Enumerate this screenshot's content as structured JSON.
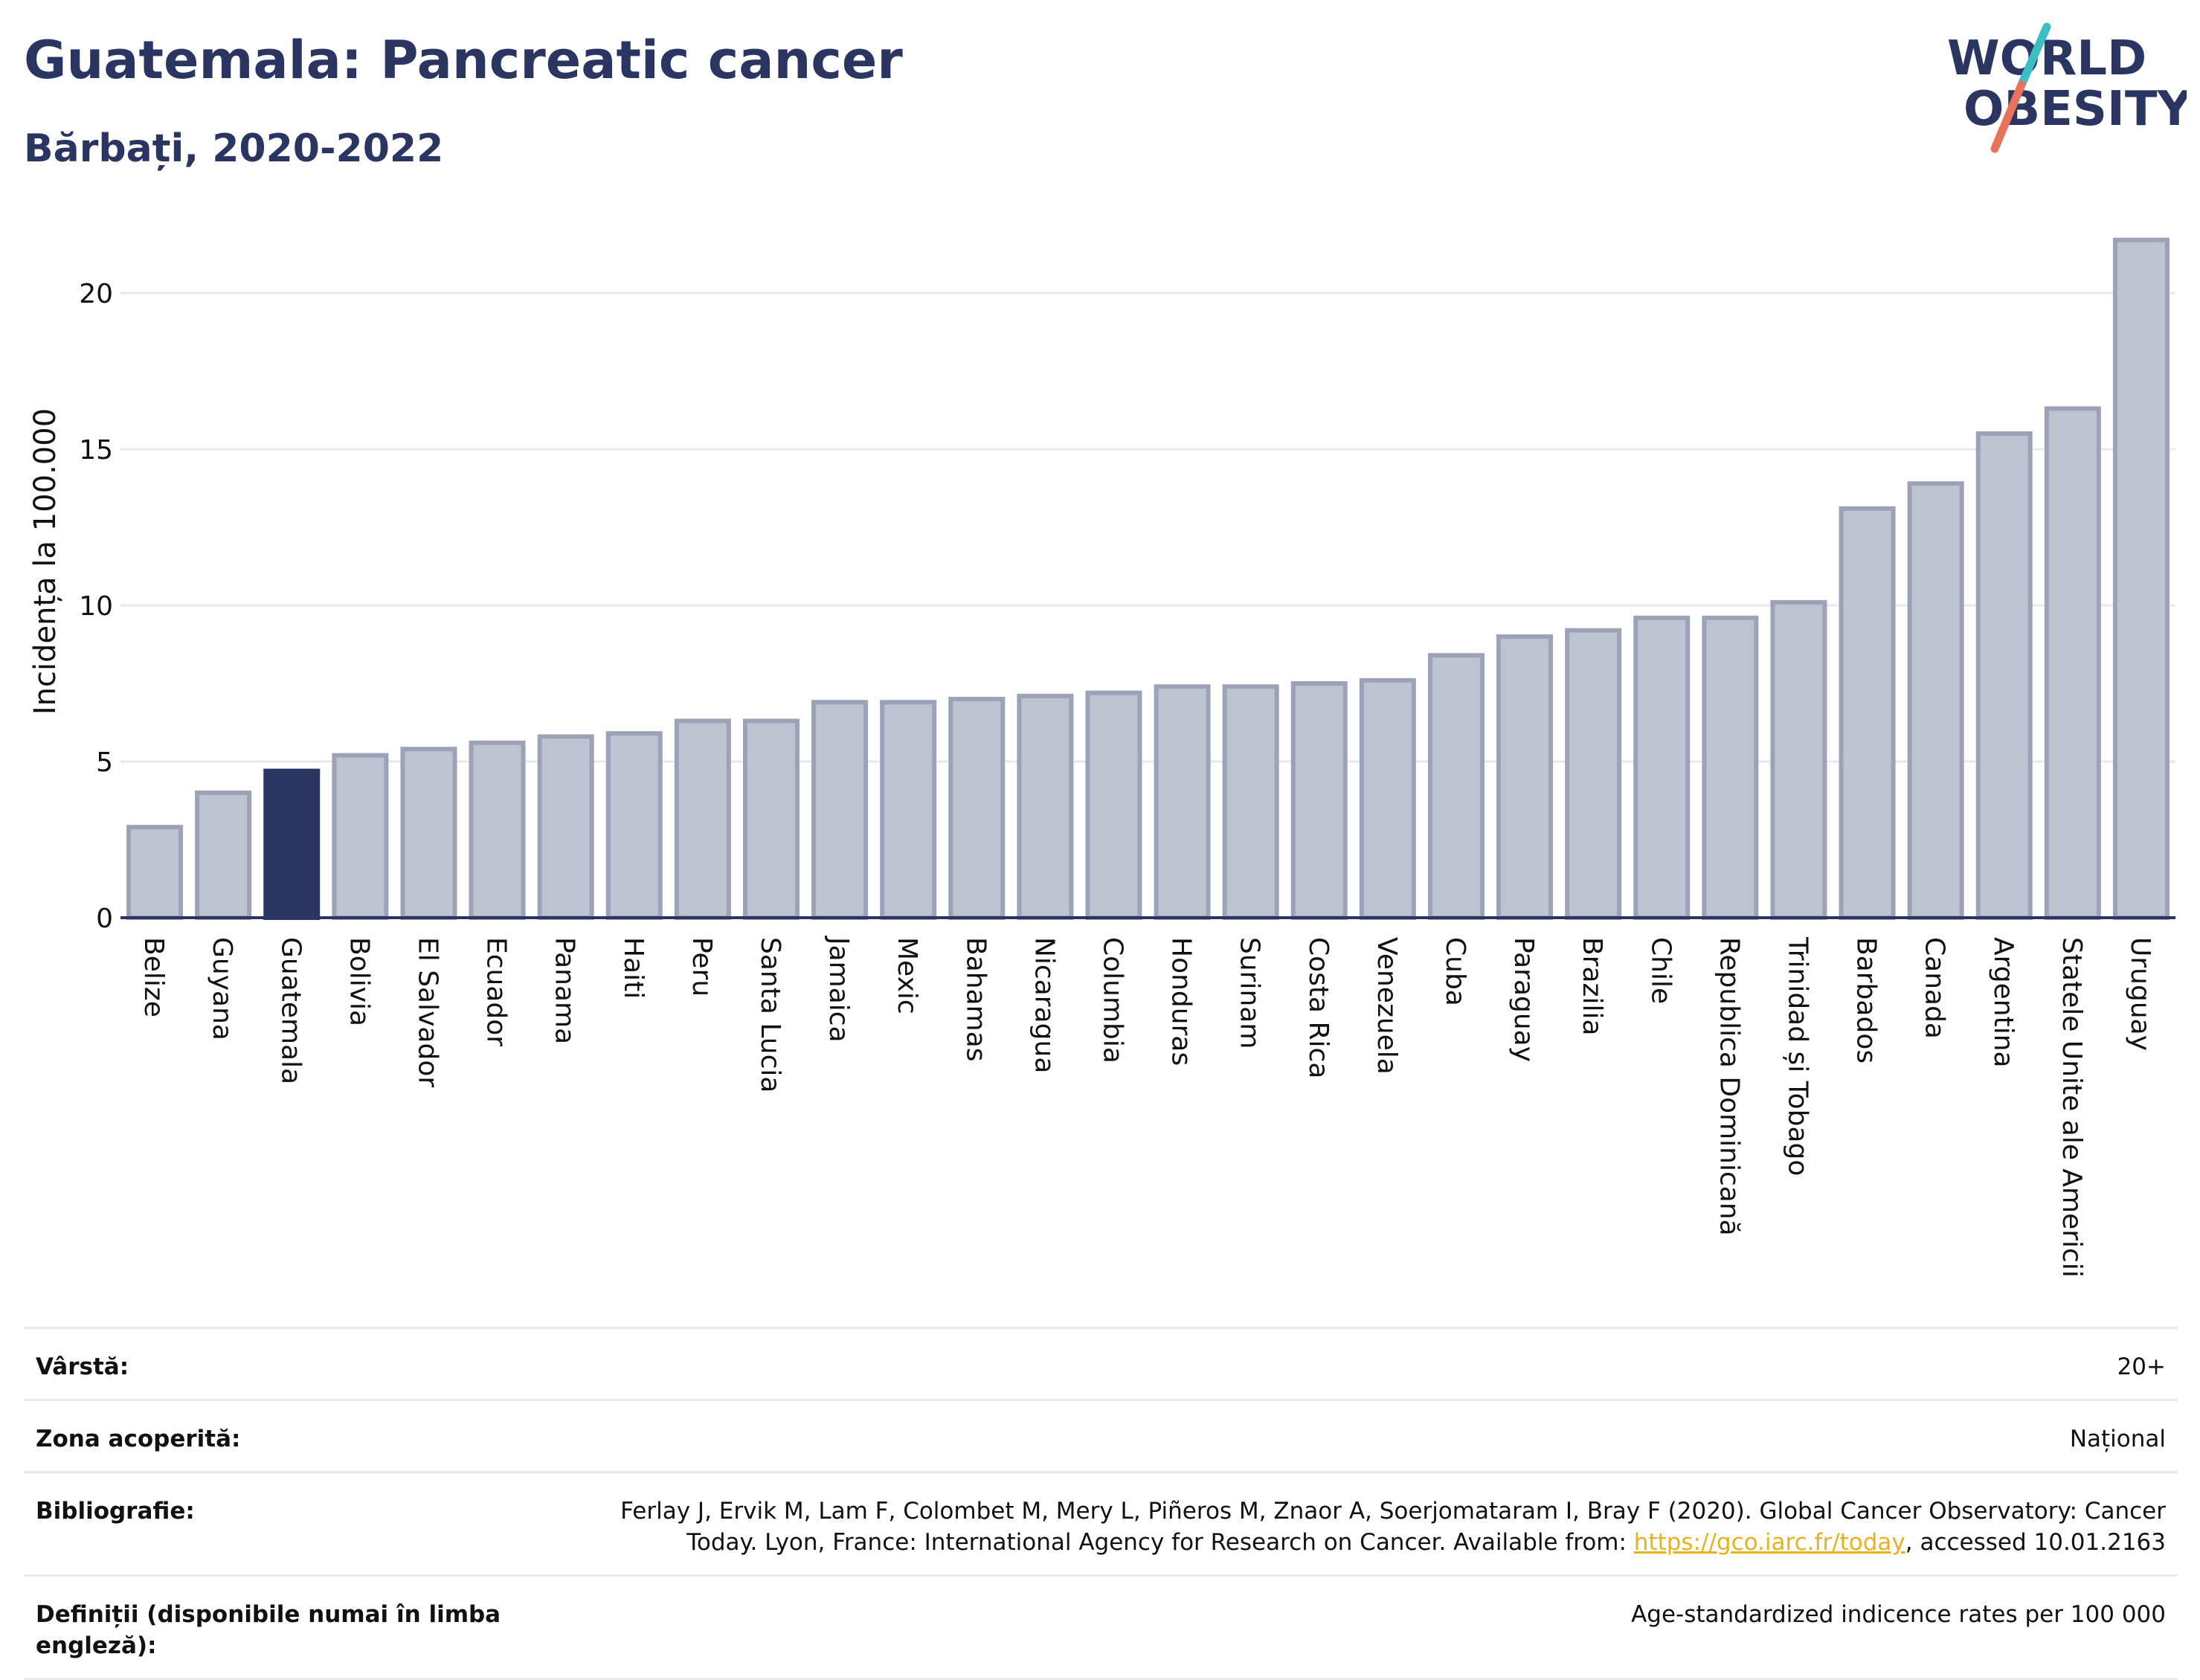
{
  "header": {
    "title": "Guatemala: Pancreatic cancer",
    "subtitle": "Bărbați, 2020-2022"
  },
  "logo": {
    "line1": "WORLD",
    "line2": "OBESITY",
    "colors": {
      "text": "#2b3561",
      "slash_top": "#3bbfc4",
      "slash_bottom": "#e8735a"
    }
  },
  "chart_data": {
    "type": "bar",
    "ylabel": "Incidența la 100.000",
    "ylim": [
      0,
      22
    ],
    "yticks": [
      0,
      5,
      10,
      15,
      20
    ],
    "grid": true,
    "highlight": "Guatemala",
    "colors": {
      "bar": "#bfc3d1",
      "bar_edge": "#9ca2b8",
      "highlight": "#2b3561",
      "grid": "#e6e9ef"
    },
    "categories": [
      "Belize",
      "Guyana",
      "Guatemala",
      "Bolivia",
      "El Salvador",
      "Ecuador",
      "Panama",
      "Haiti",
      "Peru",
      "Santa Lucia",
      "Jamaica",
      "Mexic",
      "Bahamas",
      "Nicaragua",
      "Columbia",
      "Honduras",
      "Surinam",
      "Costa Rica",
      "Venezuela",
      "Cuba",
      "Paraguay",
      "Brazilia",
      "Chile",
      "Republica Dominicană",
      "Trinidad și Tobago",
      "Barbados",
      "Canada",
      "Argentina",
      "Statele Unite ale Americii",
      "Uruguay"
    ],
    "values": [
      2.9,
      4.0,
      4.7,
      5.2,
      5.4,
      5.6,
      5.8,
      5.9,
      6.3,
      6.3,
      6.9,
      6.9,
      7.0,
      7.1,
      7.2,
      7.4,
      7.4,
      7.5,
      7.6,
      8.4,
      9.0,
      9.2,
      9.6,
      9.6,
      10.1,
      13.1,
      13.9,
      15.5,
      16.3,
      21.7
    ]
  },
  "meta": {
    "rows": [
      {
        "label": "Vârstă:",
        "value": "20+"
      },
      {
        "label": "Zona acoperită:",
        "value": "Național"
      },
      {
        "label": "Bibliografie:",
        "value_before": "Ferlay J, Ervik M, Lam F, Colombet M, Mery L, Piñeros M, Znaor A, Soerjomataram I, Bray F (2020). Global Cancer Observatory: Cancer Today. Lyon, France: International Agency for Research on Cancer. Available from: ",
        "link": "https://gco.iarc.fr/today",
        "value_after": ", accessed 10.01.2163"
      },
      {
        "label": "Definiții (disponibile numai în limba engleză):",
        "value": "Age-standardized indicence rates per 100 000"
      }
    ]
  }
}
